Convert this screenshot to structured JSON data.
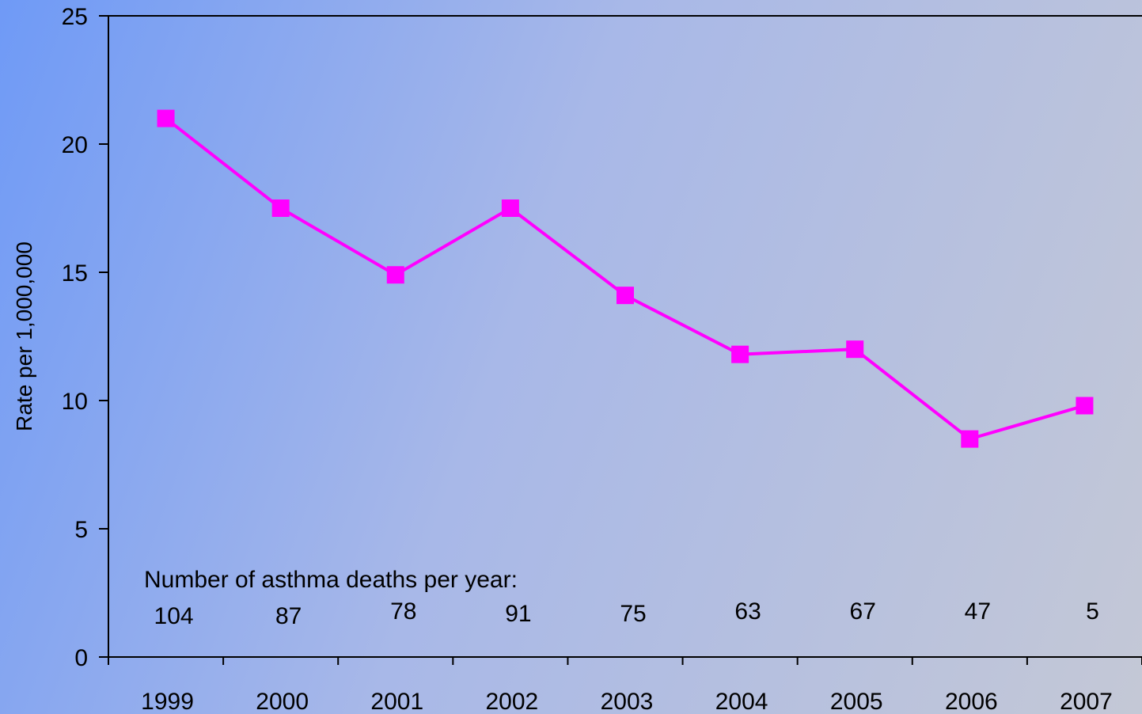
{
  "chart_data": {
    "type": "line",
    "ylabel": "Rate per 1,000,000",
    "ylim": [
      0,
      25
    ],
    "y_ticks": [
      "0",
      "5",
      "10",
      "15",
      "20",
      "25"
    ],
    "categories": [
      "1999",
      "2000",
      "2001",
      "2002",
      "2003",
      "2004",
      "2005",
      "2006",
      "2007"
    ],
    "series": [
      {
        "values": [
          21.0,
          17.5,
          14.9,
          17.5,
          14.1,
          11.8,
          12.0,
          8.5,
          9.8
        ]
      }
    ],
    "annotation": {
      "label": "Number of asthma deaths per year:",
      "values": [
        "104",
        "87",
        "78",
        "91",
        "75",
        "63",
        "67",
        "47",
        "5"
      ]
    },
    "colors": {
      "series": "#ff00ff",
      "axis": "#000000"
    },
    "grid": false
  }
}
